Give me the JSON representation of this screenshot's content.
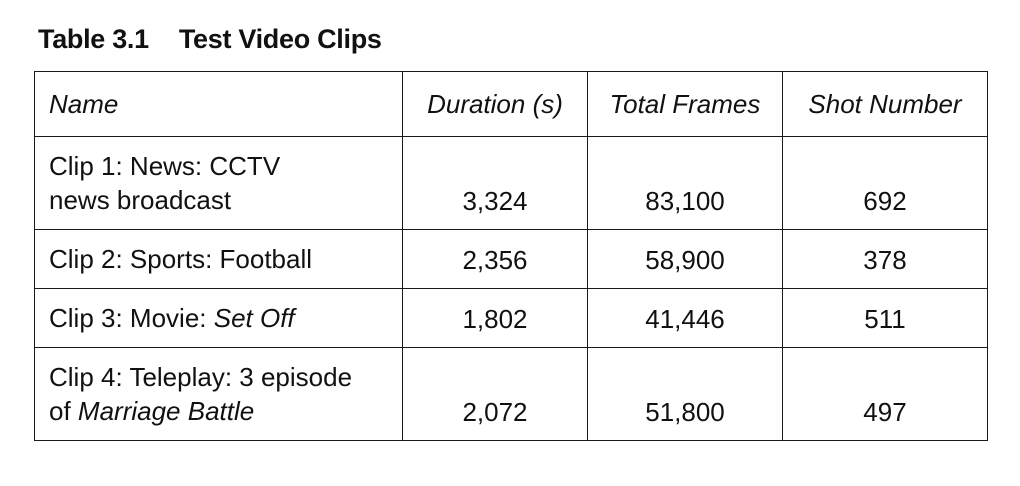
{
  "caption": {
    "number": "Table 3.1",
    "title": "Test Video Clips"
  },
  "table": {
    "headers": [
      "Name",
      "Duration (s)",
      "Total Frames",
      "Shot Number"
    ],
    "rows": [
      {
        "name_line1": "Clip 1: News: CCTV",
        "name_line2_plain": "news broadcast",
        "name_line2_italic": "",
        "duration": "3,324",
        "total_frames": "83,100",
        "shot_number": "692"
      },
      {
        "name_plain": "Clip 2: Sports: Football",
        "name_italic": "",
        "duration": "2,356",
        "total_frames": "58,900",
        "shot_number": "378"
      },
      {
        "name_plain": "Clip 3: Movie: ",
        "name_italic": "Set Off",
        "duration": "1,802",
        "total_frames": "41,446",
        "shot_number": "511"
      },
      {
        "name_line1": "Clip 4: Teleplay: 3 episode",
        "name_line2_plain": "of ",
        "name_line2_italic": "Marriage Battle",
        "duration": "2,072",
        "total_frames": "51,800",
        "shot_number": "497"
      }
    ]
  }
}
